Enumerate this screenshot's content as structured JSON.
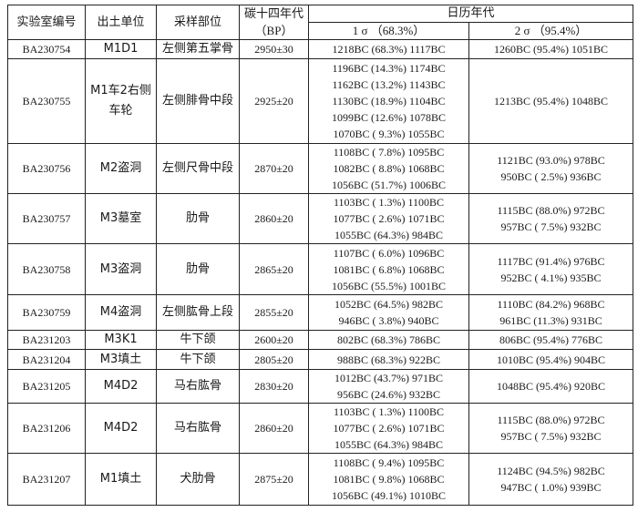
{
  "headers": {
    "lab_id": "实验室编号",
    "unit": "出土单位",
    "part": "采样部位",
    "c14": "碳十四年代",
    "c14_unit": "（BP）",
    "calendar": "日历年代",
    "sigma1": "1 σ （68.3%）",
    "sigma2": "2 σ （95.4%）"
  },
  "rows": [
    {
      "lab_id": "BA230754",
      "unit": "M1D1",
      "part": "左侧第五掌骨",
      "c14": "2950±30",
      "s1": [
        "1218BC (68.3%) 1117BC"
      ],
      "s2": [
        "1260BC (95.4%) 1051BC"
      ]
    },
    {
      "lab_id": "BA230755",
      "unit": "M1车2右侧车轮",
      "part": "左侧腓骨中段",
      "c14": "2925±20",
      "s1": [
        "1196BC (14.3%) 1174BC",
        "1162BC (13.2%) 1143BC",
        "1130BC (18.9%) 1104BC",
        "1099BC (12.6%) 1078BC",
        "1070BC ( 9.3%) 1055BC"
      ],
      "s2": [
        "1213BC (95.4%) 1048BC"
      ]
    },
    {
      "lab_id": "BA230756",
      "unit": "M2盗洞",
      "part": "左侧尺骨中段",
      "c14": "2870±20",
      "s1": [
        "1108BC ( 7.8%) 1095BC",
        "1082BC ( 8.8%) 1068BC",
        "1056BC (51.7%) 1006BC"
      ],
      "s2": [
        "1121BC (93.0%) 978BC",
        "950BC ( 2.5%) 936BC"
      ]
    },
    {
      "lab_id": "BA230757",
      "unit": "M3墓室",
      "part": "肋骨",
      "c14": "2860±20",
      "s1": [
        "1103BC ( 1.3%) 1100BC",
        "1077BC ( 2.6%) 1071BC",
        "1055BC (64.3%) 984BC"
      ],
      "s2": [
        "1115BC (88.0%) 972BC",
        "957BC ( 7.5%) 932BC"
      ]
    },
    {
      "lab_id": "BA230758",
      "unit": "M3盗洞",
      "part": "肋骨",
      "c14": "2865±20",
      "s1": [
        "1107BC ( 6.0%) 1096BC",
        "1081BC ( 6.8%) 1068BC",
        "1056BC (55.5%) 1001BC"
      ],
      "s2": [
        "1117BC (91.4%) 976BC",
        "952BC ( 4.1%) 935BC"
      ]
    },
    {
      "lab_id": "BA230759",
      "unit": "M4盗洞",
      "part": "左侧肱骨上段",
      "c14": "2855±20",
      "s1": [
        "1052BC (64.5%) 982BC",
        "946BC ( 3.8%) 940BC"
      ],
      "s2": [
        "1110BC (84.2%) 968BC",
        "961BC (11.3%) 931BC"
      ]
    },
    {
      "lab_id": "BA231203",
      "unit": "M3K1",
      "part": "牛下颌",
      "c14": "2600±20",
      "s1": [
        "802BC (68.3%) 786BC"
      ],
      "s2": [
        "806BC (95.4%) 776BC"
      ]
    },
    {
      "lab_id": "BA231204",
      "unit": "M3填土",
      "part": "牛下颌",
      "c14": "2805±20",
      "s1": [
        "988BC (68.3%) 922BC"
      ],
      "s2": [
        "1010BC (95.4%) 904BC"
      ]
    },
    {
      "lab_id": "BA231205",
      "unit": "M4D2",
      "part": "马右肱骨",
      "c14": "2830±20",
      "s1": [
        "1012BC (43.7%) 971BC",
        "956BC (24.6%) 932BC"
      ],
      "s2": [
        "1048BC (95.4%) 920BC"
      ]
    },
    {
      "lab_id": "BA231206",
      "unit": "M4D2",
      "part": "马右肱骨",
      "c14": "2860±20",
      "s1": [
        "1103BC ( 1.3%) 1100BC",
        "1077BC ( 2.6%) 1071BC",
        "1055BC (64.3%) 984BC"
      ],
      "s2": [
        "1115BC (88.0%) 972BC",
        "957BC ( 7.5%) 932BC"
      ]
    },
    {
      "lab_id": "BA231207",
      "unit": "M1填土",
      "part": "犬肋骨",
      "c14": "2875±20",
      "s1": [
        "1108BC ( 9.4%) 1095BC",
        "1081BC ( 9.8%) 1068BC",
        "1056BC (49.1%) 1010BC"
      ],
      "s2": [
        "1124BC (94.5%) 982BC",
        "947BC ( 1.0%) 939BC"
      ]
    }
  ]
}
